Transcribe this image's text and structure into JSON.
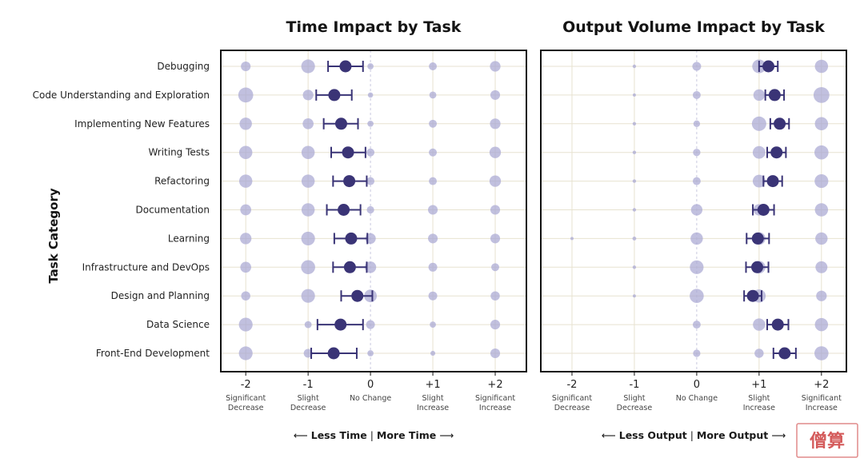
{
  "chart_data": [
    {
      "type": "scatter",
      "title": "Time Impact by Task",
      "xlabel": "Less Time | More Time",
      "xlabel_left": "Less Time",
      "xlabel_right": "More Time",
      "ylabel": "Task Category",
      "xlim": [
        -2.4,
        2.5
      ],
      "x_ticks": [
        {
          "value": -2,
          "label": "-2",
          "sub": [
            "Significant",
            "Decrease"
          ]
        },
        {
          "value": -1,
          "label": "-1",
          "sub": [
            "Slight",
            "Decrease"
          ]
        },
        {
          "value": 0,
          "label": "0",
          "sub": [
            "No Change"
          ]
        },
        {
          "value": 1,
          "label": "+1",
          "sub": [
            "Slight",
            "Increase"
          ]
        },
        {
          "value": 2,
          "label": "+2",
          "sub": [
            "Significant",
            "Increase"
          ]
        }
      ],
      "categories": [
        "Debugging",
        "Code Understanding and Exploration",
        "Implementing New Features",
        "Writing Tests",
        "Refactoring",
        "Documentation",
        "Learning",
        "Infrastructure and DevOps",
        "Design and Planning",
        "Data Science",
        "Front-End Development"
      ],
      "distribution_sizes": [
        [
          0.55,
          0.78,
          0.35,
          0.45,
          0.6
        ],
        [
          0.85,
          0.6,
          0.3,
          0.4,
          0.55
        ],
        [
          0.7,
          0.62,
          0.35,
          0.45,
          0.6
        ],
        [
          0.75,
          0.75,
          0.45,
          0.45,
          0.65
        ],
        [
          0.75,
          0.75,
          0.45,
          0.45,
          0.65
        ],
        [
          0.62,
          0.75,
          0.42,
          0.55,
          0.55
        ],
        [
          0.65,
          0.78,
          0.6,
          0.55,
          0.55
        ],
        [
          0.62,
          0.8,
          0.65,
          0.5,
          0.45
        ],
        [
          0.52,
          0.78,
          0.72,
          0.5,
          0.52
        ],
        [
          0.78,
          0.4,
          0.5,
          0.35,
          0.55
        ],
        [
          0.78,
          0.5,
          0.35,
          0.28,
          0.55
        ]
      ],
      "means": [
        -0.4,
        -0.58,
        -0.47,
        -0.36,
        -0.34,
        -0.43,
        -0.31,
        -0.33,
        -0.21,
        -0.48,
        -0.59
      ],
      "ci": [
        [
          -0.68,
          -0.12
        ],
        [
          -0.87,
          -0.3
        ],
        [
          -0.75,
          -0.2
        ],
        [
          -0.63,
          -0.08
        ],
        [
          -0.6,
          -0.06
        ],
        [
          -0.7,
          -0.16
        ],
        [
          -0.58,
          -0.05
        ],
        [
          -0.6,
          -0.06
        ],
        [
          -0.47,
          0.03
        ],
        [
          -0.85,
          -0.12
        ],
        [
          -0.95,
          -0.22
        ]
      ]
    },
    {
      "type": "scatter",
      "title": "Output Volume Impact by Task",
      "xlabel": "Less Output | More Output",
      "xlabel_left": "Less Output",
      "xlabel_right": "More Output",
      "xlim": [
        -2.5,
        2.4
      ],
      "x_ticks": [
        {
          "value": -2,
          "label": "-2",
          "sub": [
            "Significant",
            "Decrease"
          ]
        },
        {
          "value": -1,
          "label": "-1",
          "sub": [
            "Slight",
            "Decrease"
          ]
        },
        {
          "value": 0,
          "label": "0",
          "sub": [
            "No Change"
          ]
        },
        {
          "value": 1,
          "label": "+1",
          "sub": [
            "Slight",
            "Increase"
          ]
        },
        {
          "value": 2,
          "label": "+2",
          "sub": [
            "Significant",
            "Increase"
          ]
        }
      ],
      "categories": [
        "Debugging",
        "Code Understanding and Exploration",
        "Implementing New Features",
        "Writing Tests",
        "Refactoring",
        "Documentation",
        "Learning",
        "Infrastructure and DevOps",
        "Design and Planning",
        "Data Science",
        "Front-End Development"
      ],
      "distribution_sizes": [
        [
          0,
          0.2,
          0.5,
          0.78,
          0.75
        ],
        [
          0,
          0.18,
          0.45,
          0.65,
          0.9
        ],
        [
          0,
          0.2,
          0.38,
          0.82,
          0.75
        ],
        [
          0,
          0.2,
          0.42,
          0.72,
          0.8
        ],
        [
          0,
          0.2,
          0.45,
          0.72,
          0.78
        ],
        [
          0,
          0.2,
          0.65,
          0.65,
          0.75
        ],
        [
          0.18,
          0.22,
          0.7,
          0.72,
          0.7
        ],
        [
          0,
          0.2,
          0.78,
          0.72,
          0.68
        ],
        [
          0,
          0.18,
          0.8,
          0.75,
          0.6
        ],
        [
          0,
          0,
          0.45,
          0.7,
          0.75
        ],
        [
          0,
          0,
          0.42,
          0.52,
          0.8
        ]
      ],
      "means": [
        1.15,
        1.25,
        1.33,
        1.28,
        1.22,
        1.07,
        0.98,
        0.97,
        0.9,
        1.3,
        1.41
      ],
      "ci": [
        [
          1.0,
          1.3
        ],
        [
          1.1,
          1.4
        ],
        [
          1.18,
          1.48
        ],
        [
          1.13,
          1.43
        ],
        [
          1.07,
          1.37
        ],
        [
          0.9,
          1.24
        ],
        [
          0.8,
          1.16
        ],
        [
          0.79,
          1.15
        ],
        [
          0.76,
          1.04
        ],
        [
          1.13,
          1.47
        ],
        [
          1.23,
          1.59
        ]
      ]
    }
  ],
  "watermark": "僧算",
  "colors": {
    "mean": "#3a3476",
    "bubble": "#a9a7d2",
    "grid": "#e7e2d0",
    "zero": "#c9c9df",
    "frame": "#111111"
  }
}
